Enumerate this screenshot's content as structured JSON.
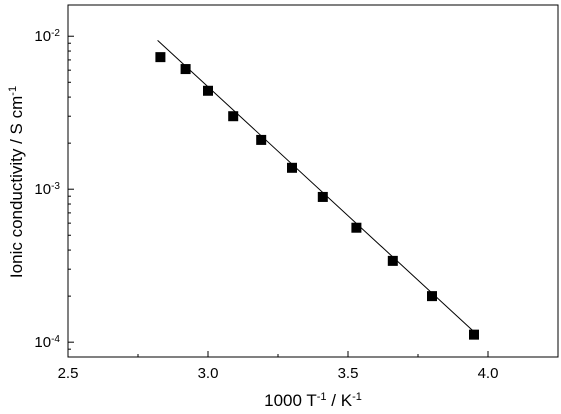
{
  "chart_data": {
    "type": "scatter",
    "xlabel": "1000 T",
    "xlabel_exponent": "-1",
    "xlabel_unit": " / K",
    "xlabel_unit_exponent": "-1",
    "ylabel": "Ionic conductivity / S cm",
    "ylabel_exponent": "-1",
    "xlim": [
      2.5,
      4.25
    ],
    "ylim": [
      8e-05,
      0.016
    ],
    "yscale": "log",
    "grid": false,
    "x_ticks": [
      2.5,
      3.0,
      3.5,
      4.0
    ],
    "x_tick_labels": [
      "2.5",
      "3.0",
      "3.5",
      "4.0"
    ],
    "y_ticks": [
      0.0001,
      0.001,
      0.01
    ],
    "y_tick_labels": [
      {
        "base": "10",
        "exp": "-4"
      },
      {
        "base": "10",
        "exp": "-3"
      },
      {
        "base": "10",
        "exp": "-2"
      }
    ],
    "series": [
      {
        "marker": "square",
        "color": "#000000",
        "points": [
          {
            "x": 2.83,
            "y": 0.0073
          },
          {
            "x": 2.92,
            "y": 0.0061
          },
          {
            "x": 3.0,
            "y": 0.0044
          },
          {
            "x": 3.09,
            "y": 0.003
          },
          {
            "x": 3.19,
            "y": 0.0021
          },
          {
            "x": 3.3,
            "y": 0.00138
          },
          {
            "x": 3.41,
            "y": 0.00089
          },
          {
            "x": 3.53,
            "y": 0.00056
          },
          {
            "x": 3.66,
            "y": 0.00034
          },
          {
            "x": 3.8,
            "y": 0.0002
          },
          {
            "x": 3.95,
            "y": 0.000112
          }
        ]
      }
    ],
    "fit_line": {
      "type": "linear-in-log",
      "color": "#000000",
      "x": [
        2.82,
        3.95
      ],
      "y": [
        0.0094,
        0.000117
      ]
    }
  }
}
